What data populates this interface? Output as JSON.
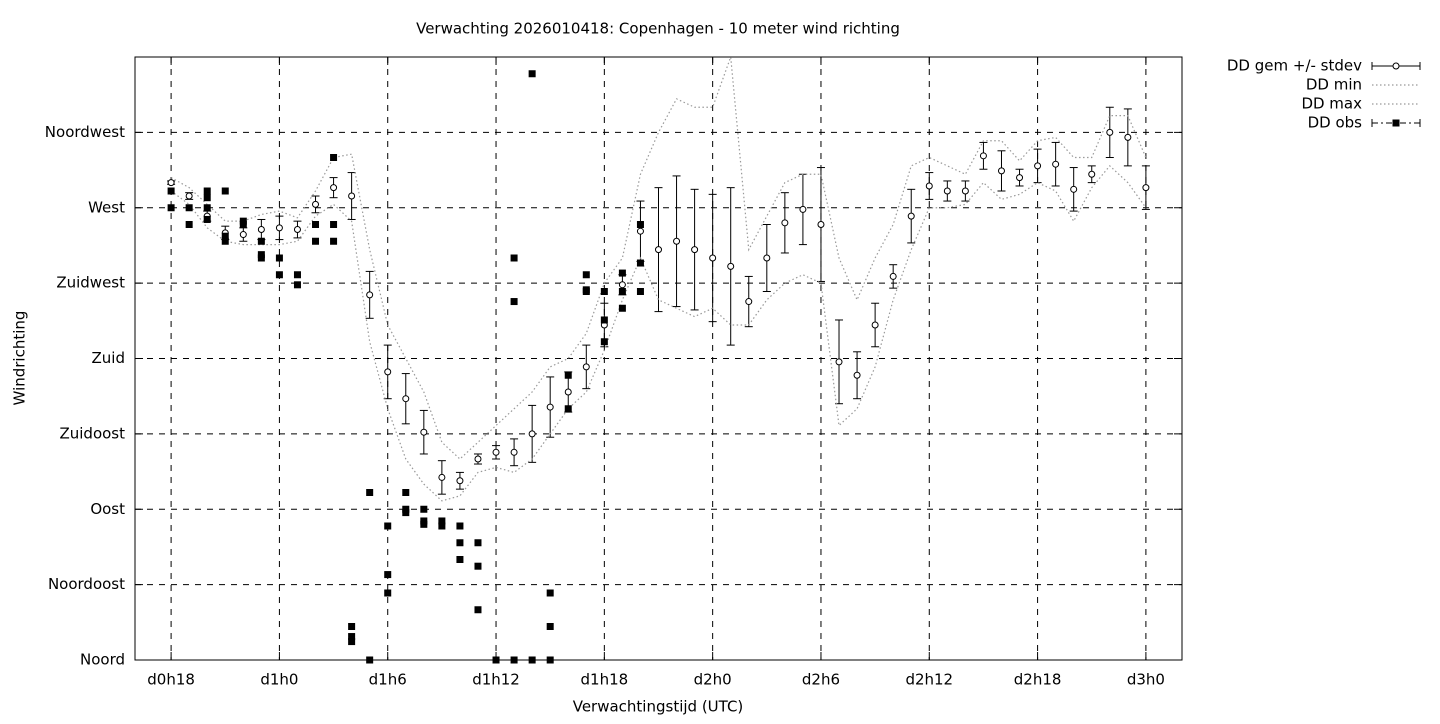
{
  "chart_data": {
    "type": "errorbar",
    "title": "Verwachting 2026010418: Copenhagen - 10 meter wind richting",
    "xlabel": "Verwachtingstijd (UTC)",
    "ylabel": "Windrichting",
    "xlim": [
      16,
      74
    ],
    "ylim": [
      0,
      360
    ],
    "xticks": [
      {
        "value": 18,
        "label": "d0h18"
      },
      {
        "value": 24,
        "label": "d1h0"
      },
      {
        "value": 30,
        "label": "d1h6"
      },
      {
        "value": 36,
        "label": "d1h12"
      },
      {
        "value": 42,
        "label": "d1h18"
      },
      {
        "value": 48,
        "label": "d2h0"
      },
      {
        "value": 54,
        "label": "d2h6"
      },
      {
        "value": 60,
        "label": "d2h12"
      },
      {
        "value": 66,
        "label": "d2h18"
      },
      {
        "value": 72,
        "label": "d3h0"
      }
    ],
    "yticks": [
      {
        "value": 0,
        "label": "Noord"
      },
      {
        "value": 45,
        "label": "Noordoost"
      },
      {
        "value": 90,
        "label": "Oost"
      },
      {
        "value": 135,
        "label": "Zuidoost"
      },
      {
        "value": 180,
        "label": "Zuid"
      },
      {
        "value": 225,
        "label": "Zuidwest"
      },
      {
        "value": 270,
        "label": "West"
      },
      {
        "value": 315,
        "label": "Noordwest"
      }
    ],
    "grid": true,
    "legend": "outside-right",
    "series": [
      {
        "name": "DD gem +/- stdev",
        "style": "errorbar",
        "color": "#000000",
        "x": [
          18,
          19,
          20,
          21,
          22,
          23,
          24,
          25,
          26,
          27,
          28,
          29,
          30,
          31,
          32,
          33,
          34,
          35,
          36,
          37,
          38,
          39,
          40,
          41,
          42,
          43,
          44,
          45,
          46,
          47,
          48,
          49,
          50,
          51,
          52,
          53,
          54,
          55,
          56,
          57,
          58,
          59,
          60,
          61,
          62,
          63,
          64,
          65,
          66,
          67,
          68,
          69,
          70,
          71,
          72
        ],
        "values": [
          285,
          277,
          265,
          255,
          254,
          257,
          258,
          257,
          272,
          282,
          277,
          218,
          172,
          156,
          136,
          109,
          107,
          120,
          124,
          124,
          135,
          151,
          160,
          175,
          200,
          224,
          256,
          245,
          250,
          245,
          240,
          235,
          214,
          240,
          261,
          269,
          260,
          178,
          170,
          200,
          229,
          265,
          283,
          280,
          280,
          301,
          292,
          288,
          295,
          296,
          281,
          290,
          315,
          312,
          282
        ],
        "errors": [
          1,
          2,
          3,
          4,
          4,
          6,
          7,
          5,
          5,
          6,
          14,
          14,
          16,
          15,
          13,
          10,
          5,
          3,
          4,
          8,
          17,
          18,
          12,
          13,
          13,
          6,
          18,
          37,
          39,
          36,
          38,
          47,
          15,
          20,
          18,
          21,
          34,
          25,
          14,
          13,
          7,
          16,
          8,
          6,
          6,
          8,
          12,
          5,
          10,
          13,
          13,
          5,
          15,
          17,
          13
        ]
      },
      {
        "name": "DD min",
        "style": "dotted",
        "color": "#999999",
        "x": [
          18,
          19,
          20,
          21,
          22,
          23,
          24,
          25,
          26,
          27,
          28,
          29,
          30,
          31,
          32,
          33,
          34,
          35,
          36,
          37,
          38,
          39,
          40,
          41,
          42,
          43,
          44,
          45,
          46,
          47,
          48,
          49,
          50,
          51,
          52,
          53,
          54,
          55,
          56,
          57,
          58,
          59,
          60,
          61,
          62,
          63,
          64,
          65,
          66,
          67,
          68,
          69,
          70,
          71,
          72
        ],
        "values": [
          280,
          272,
          258,
          250,
          248,
          248,
          248,
          250,
          265,
          272,
          262,
          190,
          150,
          120,
          105,
          95,
          98,
          112,
          115,
          112,
          120,
          135,
          150,
          160,
          185,
          215,
          240,
          215,
          210,
          205,
          210,
          200,
          200,
          215,
          225,
          230,
          225,
          140,
          150,
          175,
          215,
          245,
          270,
          270,
          272,
          285,
          275,
          278,
          285,
          280,
          262,
          282,
          295,
          285,
          270
        ]
      },
      {
        "name": "DD max",
        "style": "dotted",
        "color": "#999999",
        "x": [
          18,
          19,
          20,
          21,
          22,
          23,
          24,
          25,
          26,
          27,
          28,
          29,
          30,
          31,
          32,
          33,
          34,
          35,
          36,
          37,
          38,
          39,
          40,
          41,
          42,
          43,
          44,
          45,
          46,
          47,
          48,
          49,
          50,
          51,
          52,
          53,
          54,
          55,
          56,
          57,
          58,
          59,
          60,
          61,
          62,
          63,
          64,
          65,
          66,
          67,
          68,
          69,
          70,
          71,
          72
        ],
        "values": [
          288,
          282,
          272,
          262,
          262,
          266,
          268,
          264,
          280,
          300,
          302,
          245,
          200,
          180,
          160,
          130,
          120,
          130,
          140,
          150,
          160,
          175,
          180,
          195,
          225,
          240,
          290,
          315,
          335,
          330,
          330,
          360,
          245,
          265,
          285,
          290,
          290,
          240,
          215,
          240,
          260,
          295,
          300,
          295,
          290,
          310,
          310,
          298,
          310,
          312,
          300,
          300,
          325,
          325,
          300
        ]
      },
      {
        "name": "DD obs",
        "style": "points",
        "color": "#000000",
        "x": [
          18,
          18,
          19,
          19,
          20,
          20,
          20,
          20,
          21,
          21,
          21,
          22,
          22,
          23,
          23,
          23,
          24,
          24,
          25,
          25,
          26,
          26,
          27,
          27,
          27,
          28,
          28,
          28,
          29,
          29,
          30,
          30,
          30,
          31,
          31,
          31,
          32,
          32,
          32,
          33,
          33,
          34,
          34,
          34,
          35,
          35,
          35,
          36,
          37,
          37,
          37,
          38,
          38,
          39,
          39,
          39,
          40,
          40,
          41,
          41,
          41,
          42,
          42,
          42,
          43,
          43,
          43,
          44,
          44,
          44
        ],
        "values": [
          280,
          270,
          270,
          260,
          280,
          276,
          270,
          263,
          280,
          253,
          250,
          262,
          260,
          250,
          242,
          240,
          240,
          230,
          230,
          224,
          260,
          250,
          300,
          260,
          250,
          20,
          14,
          11,
          100,
          0,
          80,
          51,
          40,
          100,
          90,
          88,
          90,
          83,
          81,
          83,
          80,
          80,
          70,
          60,
          70,
          56,
          30,
          0,
          240,
          214,
          0,
          350,
          0,
          40,
          20,
          0,
          170,
          150,
          230,
          221,
          220,
          220,
          203,
          190,
          231,
          220,
          210,
          260,
          237,
          220
        ]
      }
    ]
  }
}
